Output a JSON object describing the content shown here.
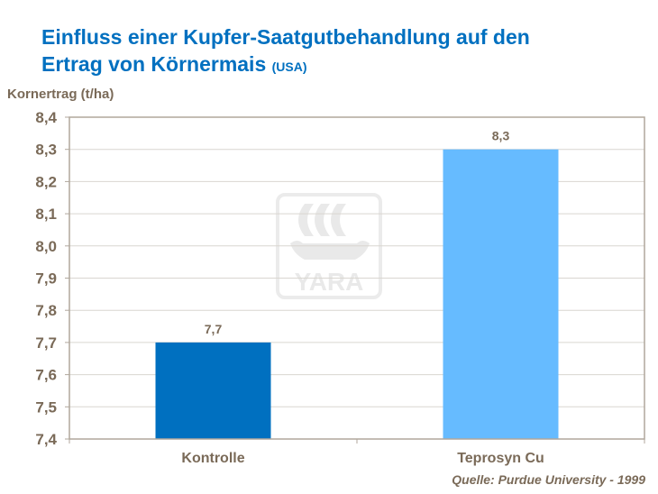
{
  "title_line1": "Einfluss einer Kupfer-Saatgutbehandlung auf den",
  "title_line2": "Ertrag von Körnermais",
  "title_suffix": "(USA)",
  "source": "Quelle:  Purdue University - 1999",
  "watermark": "YARA",
  "colors": {
    "title": "#0070c0",
    "text": "#7a6a58",
    "bar1": "#0070c0",
    "bar2": "#66bbff",
    "grid": "#d9d6d0",
    "axis": "#b0a79c"
  },
  "chart_data": {
    "type": "bar",
    "title": "",
    "ylabel": "Kornertrag (t/ha)",
    "xlabel": "",
    "categories": [
      "Kontrolle",
      "Teprosyn Cu"
    ],
    "values": [
      7.7,
      8.3
    ],
    "data_labels": [
      "7,7",
      "8,3"
    ],
    "ylim": [
      7.4,
      8.4
    ],
    "yticks": [
      "7,4",
      "7,5",
      "7,6",
      "7,7",
      "7,8",
      "7,9",
      "8,0",
      "8,1",
      "8,2",
      "8,3",
      "8,4"
    ],
    "grid": true
  }
}
